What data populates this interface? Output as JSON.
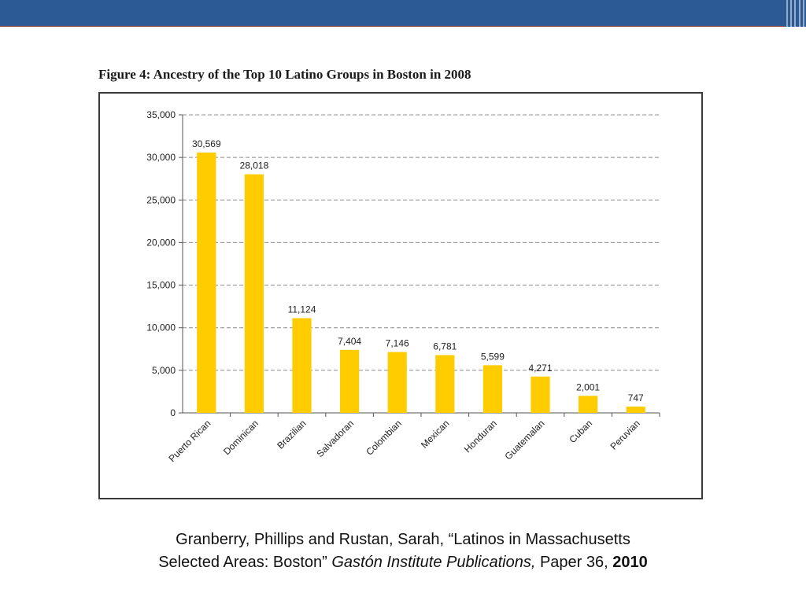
{
  "colors": {
    "header_blue": "#2c5a95",
    "header_red": "#9c3b3c",
    "header_pink": "#d9a7a6",
    "bar_fill": "#ffcc00",
    "grid": "#8c8c8c",
    "frame": "#3a3a3a"
  },
  "figure": {
    "title": "Figure 4: Ancestry of the Top 10 Latino Groups in Boston in 2008"
  },
  "chart_data": {
    "type": "bar",
    "categories": [
      "Puerto Rican",
      "Dominican",
      "Brazilian",
      "Salvadoran",
      "Colombian",
      "Mexican",
      "Honduran",
      "Guatemalan",
      "Cuban",
      "Peruvian"
    ],
    "values": [
      30569,
      28018,
      11124,
      7404,
      7146,
      6781,
      5599,
      4271,
      2001,
      747
    ],
    "data_labels": [
      "30,569",
      "28,018",
      "11,124",
      "7,404",
      "7,146",
      "6,781",
      "5,599",
      "4,271",
      "2,001",
      "747"
    ],
    "y_ticks": [
      0,
      5000,
      10000,
      15000,
      20000,
      25000,
      30000,
      35000
    ],
    "y_tick_labels": [
      "0",
      "5,000",
      "10,000",
      "15,000",
      "20,000",
      "25,000",
      "30,000",
      "35,000"
    ],
    "ylim": [
      0,
      35000
    ],
    "grid": true,
    "grid_style": "dashed",
    "legend": "none"
  },
  "citation": {
    "line1": "Granberry,  Phillips and Rustan, Sarah, “Latinos in Massachusetts",
    "line2_prefix": "Selected Areas: Boston”",
    "publication": "Gastón Institute Publications,",
    "paper": "Paper 36,",
    "year": "2010"
  }
}
